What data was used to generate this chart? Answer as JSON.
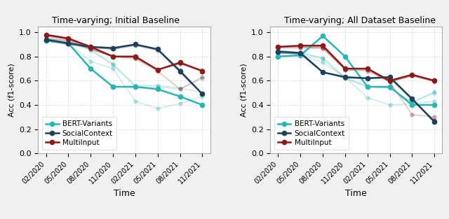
{
  "time_labels": [
    "02/2020",
    "05/2020",
    "08/2020",
    "11/2020",
    "02/2021",
    "05/2021",
    "08/2021",
    "11/2021"
  ],
  "plot1": {
    "title": "Time-varying; Initial Baseline",
    "bert_main": [
      0.93,
      0.91,
      0.7,
      0.55,
      0.55,
      0.53,
      0.47,
      0.4
    ],
    "bert_ghost": [
      [
        0.94,
        0.91,
        0.76,
        0.7,
        0.43,
        0.37,
        0.41,
        0.47
      ],
      [
        0.95,
        0.93,
        0.85,
        0.73,
        0.55,
        0.55,
        0.53,
        0.62
      ],
      [
        0.95,
        0.92,
        0.86,
        0.74,
        0.56,
        0.56,
        0.54,
        0.5
      ]
    ],
    "social_main": [
      0.94,
      0.91,
      0.88,
      0.87,
      0.9,
      0.86,
      0.68,
      0.49
    ],
    "social_ghost": [
      [
        0.93,
        0.9,
        0.87,
        0.86,
        0.89,
        0.85,
        0.67,
        0.49
      ],
      [
        0.93,
        0.9,
        0.88,
        0.86,
        0.9,
        0.86,
        0.69,
        0.49
      ]
    ],
    "multi_main": [
      0.98,
      0.95,
      0.88,
      0.8,
      0.8,
      0.69,
      0.75,
      0.68
    ],
    "multi_ghost": [
      [
        0.97,
        0.94,
        0.87,
        0.8,
        0.8,
        0.69,
        0.74,
        0.69
      ],
      [
        0.97,
        0.94,
        0.86,
        0.8,
        0.79,
        0.69,
        0.74,
        0.68
      ],
      [
        0.95,
        0.93,
        0.86,
        0.8,
        0.78,
        0.68,
        0.53,
        0.63
      ]
    ]
  },
  "plot2": {
    "title": "Time-varying; All Dataset Baseline",
    "bert_main": [
      0.8,
      0.81,
      0.97,
      0.8,
      0.55,
      0.55,
      0.4,
      0.4
    ],
    "bert_ghost": [
      [
        0.83,
        0.82,
        0.75,
        0.63,
        0.46,
        0.4,
        0.41,
        0.43
      ],
      [
        0.85,
        0.83,
        0.79,
        0.63,
        0.55,
        0.54,
        0.42,
        0.5
      ],
      [
        0.86,
        0.83,
        0.78,
        0.62,
        0.55,
        0.54,
        0.42,
        0.51
      ]
    ],
    "social_main": [
      0.84,
      0.83,
      0.67,
      0.63,
      0.62,
      0.63,
      0.45,
      0.26
    ],
    "social_ghost": [
      [
        0.83,
        0.82,
        0.67,
        0.63,
        0.62,
        0.63,
        0.45,
        0.27
      ],
      [
        0.83,
        0.82,
        0.67,
        0.62,
        0.62,
        0.62,
        0.44,
        0.27
      ]
    ],
    "multi_main": [
      0.88,
      0.89,
      0.89,
      0.7,
      0.7,
      0.6,
      0.65,
      0.6
    ],
    "multi_ghost": [
      [
        0.88,
        0.88,
        0.88,
        0.7,
        0.7,
        0.59,
        0.64,
        0.6
      ],
      [
        0.88,
        0.88,
        0.87,
        0.69,
        0.69,
        0.59,
        0.64,
        0.59
      ],
      [
        0.87,
        0.87,
        0.87,
        0.69,
        0.68,
        0.59,
        0.32,
        0.3
      ]
    ]
  },
  "colors": {
    "bert": "#2ab5b0",
    "social": "#1f3f5a",
    "multi": "#8b1a1a"
  },
  "ghost_alpha": 0.28,
  "ylabel": "Acc (f1-score)",
  "xlabel": "Time",
  "ylim": [
    0.0,
    1.05
  ],
  "yticks": [
    0.0,
    0.2,
    0.4,
    0.6,
    0.8,
    1.0
  ],
  "legend_labels": [
    "BERT-Variants",
    "SocialContext",
    "MultiInput"
  ],
  "fig_facecolor": "#f0f0f0",
  "ax_facecolor": "#ffffff",
  "grid_color": "#cccccc"
}
